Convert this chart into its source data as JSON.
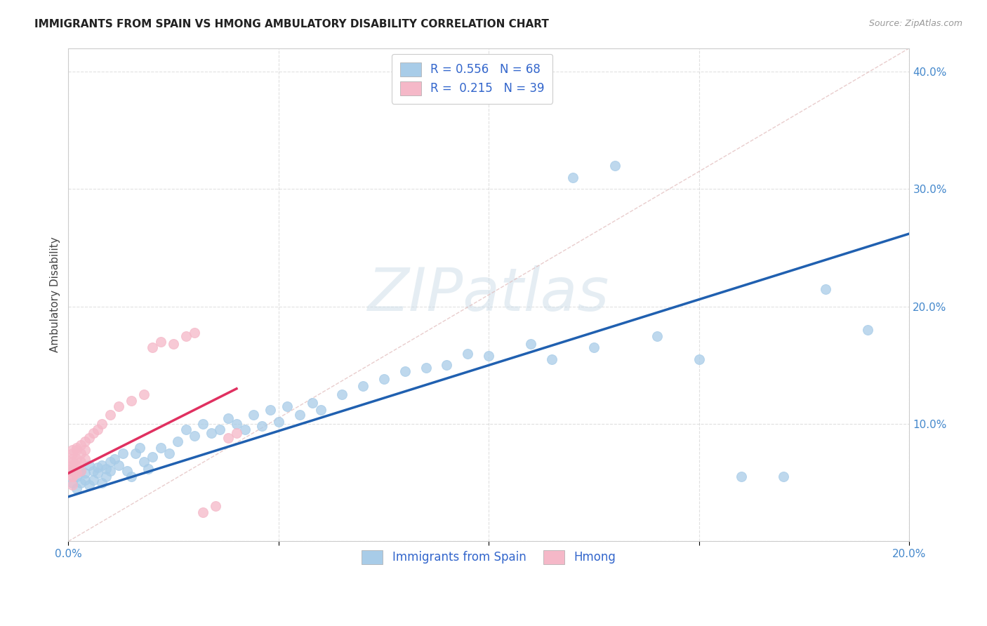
{
  "title": "IMMIGRANTS FROM SPAIN VS HMONG AMBULATORY DISABILITY CORRELATION CHART",
  "source": "Source: ZipAtlas.com",
  "ylabel": "Ambulatory Disability",
  "xlim": [
    0.0,
    0.2
  ],
  "ylim": [
    0.0,
    0.42
  ],
  "blue_color": "#a8cce8",
  "pink_color": "#f5b8c8",
  "blue_line_color": "#2060b0",
  "pink_line_color": "#e03060",
  "legend_label_blue": "Immigrants from Spain",
  "legend_label_pink": "Hmong",
  "watermark": "ZIPatlas",
  "background_color": "#ffffff",
  "grid_color": "#cccccc",
  "blue_x": [
    0.001,
    0.001,
    0.002,
    0.002,
    0.003,
    0.003,
    0.004,
    0.004,
    0.005,
    0.005,
    0.006,
    0.006,
    0.007,
    0.007,
    0.008,
    0.008,
    0.009,
    0.009,
    0.01,
    0.01,
    0.011,
    0.012,
    0.013,
    0.014,
    0.015,
    0.016,
    0.017,
    0.018,
    0.019,
    0.02,
    0.022,
    0.024,
    0.026,
    0.028,
    0.03,
    0.032,
    0.034,
    0.036,
    0.038,
    0.04,
    0.042,
    0.044,
    0.046,
    0.048,
    0.05,
    0.052,
    0.055,
    0.058,
    0.06,
    0.065,
    0.07,
    0.075,
    0.08,
    0.085,
    0.09,
    0.095,
    0.1,
    0.11,
    0.115,
    0.12,
    0.125,
    0.13,
    0.14,
    0.15,
    0.16,
    0.17,
    0.18,
    0.19
  ],
  "blue_y": [
    0.06,
    0.05,
    0.055,
    0.045,
    0.06,
    0.05,
    0.058,
    0.052,
    0.065,
    0.048,
    0.06,
    0.052,
    0.063,
    0.058,
    0.065,
    0.05,
    0.062,
    0.055,
    0.068,
    0.06,
    0.07,
    0.065,
    0.075,
    0.06,
    0.055,
    0.075,
    0.08,
    0.068,
    0.062,
    0.072,
    0.08,
    0.075,
    0.085,
    0.095,
    0.09,
    0.1,
    0.092,
    0.095,
    0.105,
    0.1,
    0.095,
    0.108,
    0.098,
    0.112,
    0.102,
    0.115,
    0.108,
    0.118,
    0.112,
    0.125,
    0.132,
    0.138,
    0.145,
    0.148,
    0.15,
    0.16,
    0.158,
    0.168,
    0.155,
    0.31,
    0.165,
    0.32,
    0.175,
    0.155,
    0.055,
    0.055,
    0.215,
    0.18
  ],
  "pink_x": [
    0.001,
    0.001,
    0.001,
    0.001,
    0.001,
    0.001,
    0.001,
    0.001,
    0.001,
    0.001,
    0.002,
    0.002,
    0.002,
    0.002,
    0.002,
    0.003,
    0.003,
    0.003,
    0.003,
    0.004,
    0.004,
    0.004,
    0.005,
    0.006,
    0.007,
    0.008,
    0.01,
    0.012,
    0.015,
    0.018,
    0.02,
    0.022,
    0.025,
    0.028,
    0.03,
    0.032,
    0.035,
    0.038,
    0.04
  ],
  "pink_y": [
    0.055,
    0.06,
    0.062,
    0.065,
    0.068,
    0.07,
    0.075,
    0.078,
    0.055,
    0.048,
    0.058,
    0.065,
    0.07,
    0.078,
    0.08,
    0.06,
    0.068,
    0.075,
    0.082,
    0.07,
    0.078,
    0.085,
    0.088,
    0.092,
    0.095,
    0.1,
    0.108,
    0.115,
    0.12,
    0.125,
    0.165,
    0.17,
    0.168,
    0.175,
    0.178,
    0.025,
    0.03,
    0.088,
    0.092
  ],
  "blue_trend_x": [
    0.0,
    0.2
  ],
  "blue_trend_y": [
    0.038,
    0.262
  ],
  "pink_trend_x": [
    0.0,
    0.04
  ],
  "pink_trend_y": [
    0.058,
    0.13
  ]
}
